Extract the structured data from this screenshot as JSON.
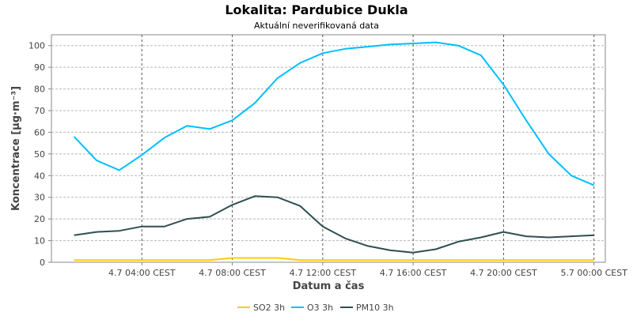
{
  "chart_data": {
    "type": "line",
    "title": "Lokalita: Pardubice Dukla",
    "subtitle": "Aktuální neverifikovaná data",
    "xlabel": "Datum a čas",
    "ylabel": "Koncentrace [µg·m⁻³]",
    "ylim": [
      0,
      105
    ],
    "yticks": [
      0,
      10,
      20,
      30,
      40,
      50,
      60,
      70,
      80,
      90,
      100
    ],
    "x_hours": [
      1,
      2,
      3,
      4,
      5,
      6,
      7,
      8,
      9,
      10,
      11,
      12,
      13,
      14,
      15,
      16,
      17,
      18,
      19,
      20,
      21,
      22,
      23,
      24
    ],
    "xlim_hours": [
      0,
      24.5
    ],
    "xticks": [
      {
        "hour": 4,
        "label": "4.7 04:00 CEST"
      },
      {
        "hour": 8,
        "label": "4.7 08:00 CEST"
      },
      {
        "hour": 12,
        "label": "4.7 12:00 CEST"
      },
      {
        "hour": 16,
        "label": "4.7 16:00 CEST"
      },
      {
        "hour": 20,
        "label": "4.7 20:00 CEST"
      },
      {
        "hour": 24,
        "label": "5.7 00:00 CEST"
      }
    ],
    "grid": true,
    "legend_position": "bottom-center",
    "series": [
      {
        "name": "SO2 3h",
        "color": "#FFCC00",
        "values": [
          1,
          1,
          1,
          1,
          1,
          1,
          1,
          2,
          2,
          2,
          1,
          1,
          1,
          1,
          1,
          1,
          1,
          1,
          1,
          1,
          1,
          1,
          1,
          1
        ]
      },
      {
        "name": "O3 3h",
        "color": "#00BFFF",
        "values": [
          58,
          47,
          42.5,
          49.5,
          57.5,
          63,
          61.5,
          65.5,
          73.5,
          85,
          92,
          96.5,
          98.5,
          99.5,
          100.5,
          101,
          101.5,
          100,
          95.5,
          82,
          65.5,
          50,
          40,
          35.5
        ]
      },
      {
        "name": "PM10 3h",
        "color": "#2F4F4F",
        "values": [
          12.5,
          14,
          14.5,
          16.5,
          16.5,
          20,
          21,
          26.5,
          30.5,
          30,
          26,
          16.5,
          11,
          7.5,
          5.5,
          4.5,
          6,
          9.5,
          11.5,
          14,
          12,
          11.5,
          12,
          12.5
        ]
      }
    ]
  }
}
